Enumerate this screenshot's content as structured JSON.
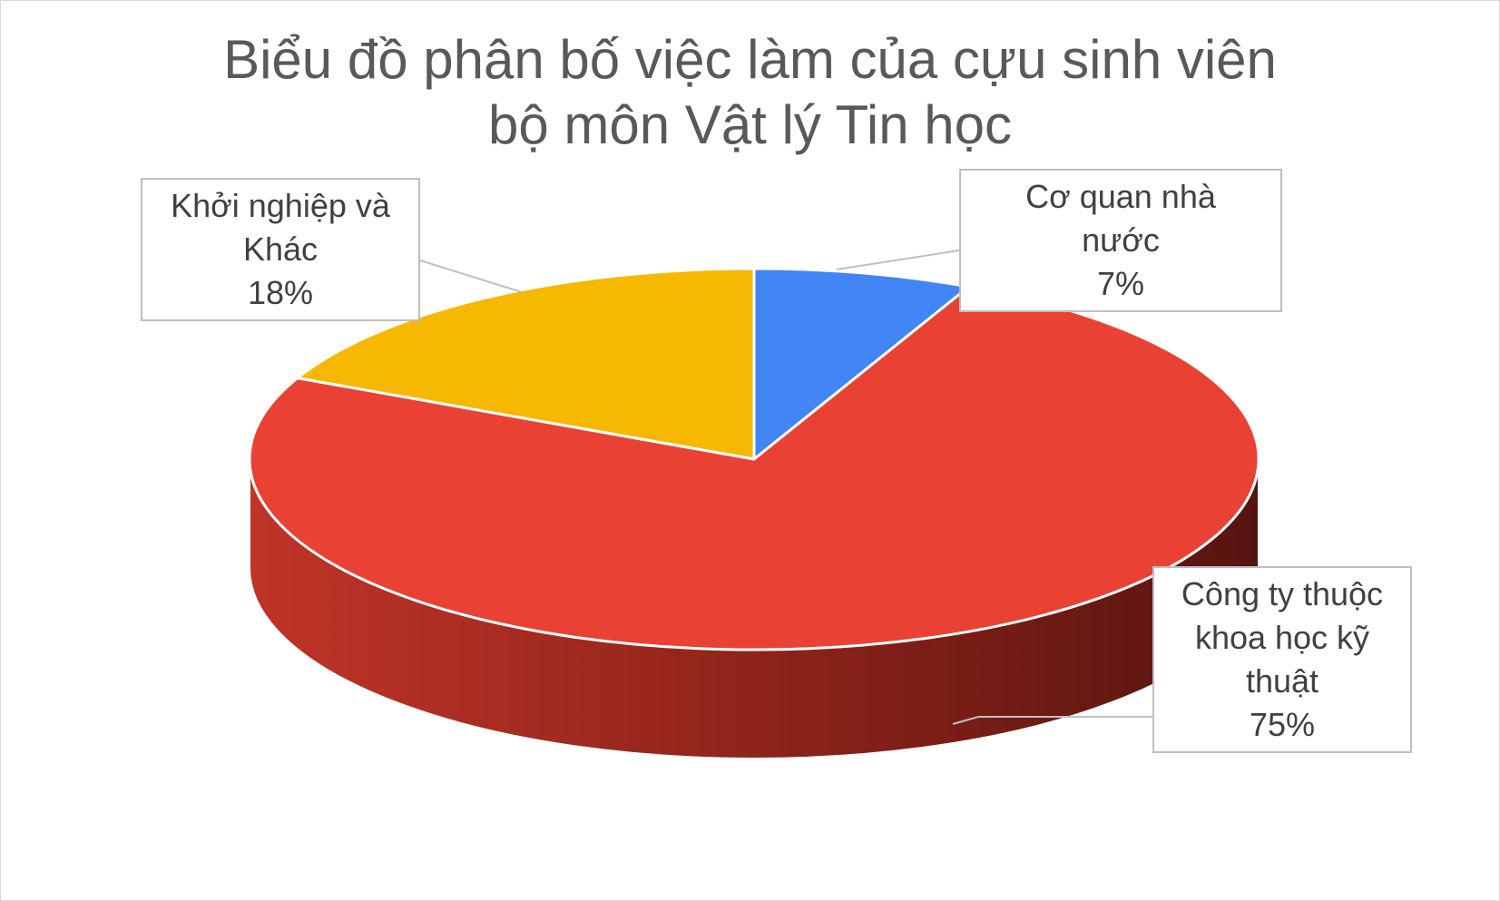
{
  "chart_data": {
    "type": "pie",
    "title_lines": [
      "Biểu đồ phân bố việc làm của cựu sinh viên",
      "bộ môn Vật lý Tin học"
    ],
    "slices": [
      {
        "label_lines": [
          "Cơ quan nhà",
          "nước"
        ],
        "percent_label": "7%",
        "value": 7,
        "color": "#4285f4"
      },
      {
        "label_lines": [
          "Công ty thuộc",
          "khoa học kỹ",
          "thuật"
        ],
        "percent_label": "75%",
        "value": 75,
        "color": "#e94235"
      },
      {
        "label_lines": [
          "Khởi nghiệp và",
          "Khác"
        ],
        "percent_label": "18%",
        "value": 18,
        "color": "#f6b800"
      }
    ],
    "legend": "none",
    "style": "3d"
  }
}
